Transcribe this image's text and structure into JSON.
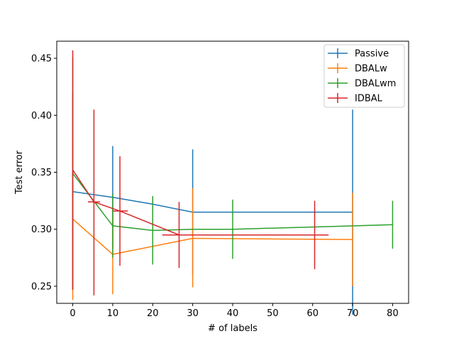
{
  "chart_data": {
    "type": "line",
    "title": "",
    "xlabel": "# of labels",
    "ylabel": "Test error",
    "xlim": [
      -4,
      84
    ],
    "ylim": [
      0.235,
      0.465
    ],
    "xticks": [
      0,
      10,
      20,
      30,
      40,
      50,
      60,
      70,
      80
    ],
    "yticks": [
      0.25,
      0.3,
      0.35,
      0.4,
      0.45
    ],
    "ytick_labels": [
      "0.25",
      "0.30",
      "0.35",
      "0.40",
      "0.45"
    ],
    "grid": false,
    "legend_position": "top-right",
    "series": [
      {
        "name": "Passive",
        "color": "#1f77b4",
        "points": [
          {
            "x": 0,
            "y": 0.333,
            "yerr_low": 0.247,
            "yerr_high": 0.419
          },
          {
            "x": 10,
            "y": 0.328,
            "yerr_low": 0.283,
            "yerr_high": 0.373
          },
          {
            "x": 20,
            "y": 0.322,
            "yerr_low": 0.315,
            "yerr_high": 0.329
          },
          {
            "x": 30,
            "y": 0.315,
            "yerr_low": 0.26,
            "yerr_high": 0.37
          },
          {
            "x": 40,
            "y": 0.315,
            "yerr_low": 0.315,
            "yerr_high": 0.315
          },
          {
            "x": 70,
            "y": 0.315,
            "yerr_low": 0.225,
            "yerr_high": 0.405
          }
        ]
      },
      {
        "name": "DBALw",
        "color": "#ff7f0e",
        "points": [
          {
            "x": 0,
            "y": 0.309,
            "yerr_low": 0.238,
            "yerr_high": 0.38
          },
          {
            "x": 10,
            "y": 0.278,
            "yerr_low": 0.243,
            "yerr_high": 0.313
          },
          {
            "x": 30,
            "y": 0.292,
            "yerr_low": 0.249,
            "yerr_high": 0.336
          },
          {
            "x": 70,
            "y": 0.291,
            "yerr_low": 0.25,
            "yerr_high": 0.332
          }
        ]
      },
      {
        "name": "DBALwm",
        "color": "#2ca02c",
        "points": [
          {
            "x": 0,
            "y": 0.349,
            "yerr_low": 0.247,
            "yerr_high": 0.451
          },
          {
            "x": 10,
            "y": 0.303,
            "yerr_low": 0.275,
            "yerr_high": 0.331
          },
          {
            "x": 20,
            "y": 0.299,
            "yerr_low": 0.269,
            "yerr_high": 0.329
          },
          {
            "x": 30,
            "y": 0.3,
            "yerr_low": 0.3,
            "yerr_high": 0.3
          },
          {
            "x": 40,
            "y": 0.3,
            "yerr_low": 0.274,
            "yerr_high": 0.326
          },
          {
            "x": 80,
            "y": 0.304,
            "yerr_low": 0.283,
            "yerr_high": 0.325
          }
        ]
      },
      {
        "name": "IDBAL",
        "color": "#d62728",
        "points": [
          {
            "x": 0,
            "y": 0.352,
            "yerr_low": 0.247,
            "yerr_high": 0.457,
            "xerr_low": 0,
            "xerr_high": 0
          },
          {
            "x": 5.3,
            "y": 0.324,
            "yerr_low": 0.242,
            "yerr_high": 0.405,
            "xerr_low": 3.8,
            "xerr_high": 6.8
          },
          {
            "x": 11.8,
            "y": 0.316,
            "yerr_low": 0.268,
            "yerr_high": 0.364,
            "xerr_low": 10.0,
            "xerr_high": 13.8
          },
          {
            "x": 26.6,
            "y": 0.295,
            "yerr_low": 0.266,
            "yerr_high": 0.324,
            "xerr_low": 22.4,
            "xerr_high": 30.8
          },
          {
            "x": 60.5,
            "y": 0.295,
            "yerr_low": 0.265,
            "yerr_high": 0.325,
            "xerr_low": 57.0,
            "xerr_high": 64.0
          }
        ]
      }
    ]
  }
}
